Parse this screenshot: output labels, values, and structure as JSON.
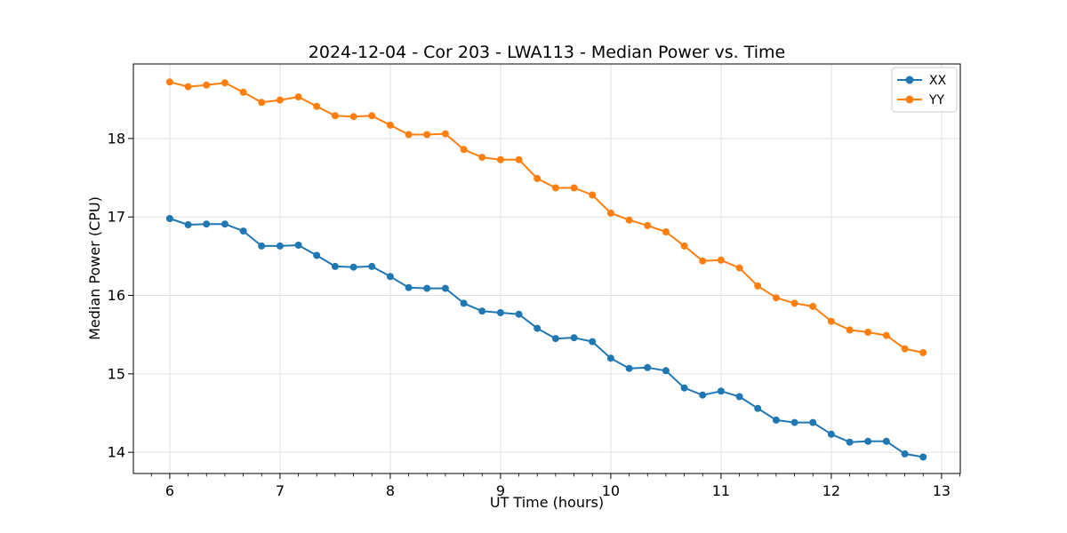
{
  "figure": {
    "title": "2024-12-04 - Cor 203 - LWA113 - Median Power vs. Time",
    "xlabel": "UT Time (hours)",
    "ylabel": "Median Power (CPU)"
  },
  "chart_data": {
    "type": "line",
    "title": "2024-12-04 - Cor 203 - LWA113 - Median Power vs. Time",
    "xlabel": "UT Time (hours)",
    "ylabel": "Median Power (CPU)",
    "grid": true,
    "legend_position": "upper right",
    "marker": "circle",
    "xlim": [
      5.67,
      13.17
    ],
    "ylim": [
      13.73,
      18.95
    ],
    "xticks": [
      6,
      7,
      8,
      9,
      10,
      11,
      12,
      13
    ],
    "yticks": [
      14,
      15,
      16,
      17,
      18
    ],
    "x_minor_step": 0.16667,
    "x": [
      6.0,
      6.167,
      6.333,
      6.5,
      6.667,
      6.833,
      7.0,
      7.167,
      7.333,
      7.5,
      7.667,
      7.833,
      8.0,
      8.167,
      8.333,
      8.5,
      8.667,
      8.833,
      9.0,
      9.167,
      9.333,
      9.5,
      9.667,
      9.833,
      10.0,
      10.167,
      10.333,
      10.5,
      10.667,
      10.833,
      11.0,
      11.167,
      11.333,
      11.5,
      11.667,
      11.833,
      12.0,
      12.167,
      12.333,
      12.5,
      12.667,
      12.833
    ],
    "series": [
      {
        "name": "XX",
        "color": "#1f77b4",
        "values": [
          16.98,
          16.9,
          16.91,
          16.91,
          16.82,
          16.63,
          16.63,
          16.64,
          16.51,
          16.37,
          16.36,
          16.37,
          16.24,
          16.1,
          16.09,
          16.09,
          15.9,
          15.8,
          15.78,
          15.76,
          15.58,
          15.45,
          15.46,
          15.41,
          15.2,
          15.07,
          15.08,
          15.04,
          14.82,
          14.73,
          14.78,
          14.71,
          14.56,
          14.41,
          14.38,
          14.38,
          14.23,
          14.13,
          14.14,
          14.14,
          13.98,
          13.94
        ]
      },
      {
        "name": "YY",
        "color": "#ff7f0e",
        "values": [
          18.72,
          18.66,
          18.68,
          18.71,
          18.59,
          18.46,
          18.49,
          18.53,
          18.41,
          18.29,
          18.28,
          18.29,
          18.17,
          18.05,
          18.05,
          18.06,
          17.86,
          17.76,
          17.73,
          17.73,
          17.49,
          17.37,
          17.37,
          17.28,
          17.05,
          16.96,
          16.89,
          16.81,
          16.63,
          16.44,
          16.45,
          16.35,
          16.12,
          15.97,
          15.9,
          15.86,
          15.67,
          15.56,
          15.53,
          15.49,
          15.32,
          15.27
        ]
      }
    ]
  },
  "style": {
    "background": "#ffffff",
    "grid_color": "#e0e0e0",
    "spine_color": "#000000",
    "tick_color": "#000000",
    "legend_border": "#cccccc",
    "legend_fill": "#ffffff"
  }
}
